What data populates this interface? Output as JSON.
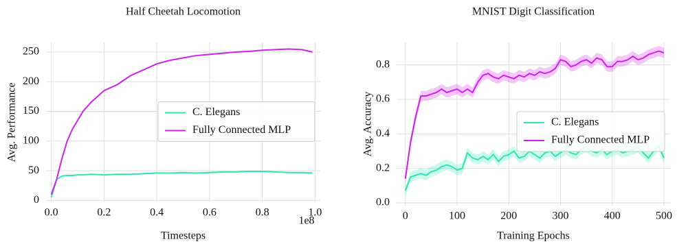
{
  "chart_data": [
    {
      "type": "line",
      "title": "Half Cheetah Locomotion",
      "x_label": "Timesteps",
      "y_label": "Avg. Performance",
      "x_offset_label": "1e8",
      "x": [
        0,
        0.02,
        0.04,
        0.06,
        0.08,
        0.1,
        0.12,
        0.15,
        0.2,
        0.25,
        0.3,
        0.35,
        0.4,
        0.45,
        0.5,
        0.55,
        0.6,
        0.65,
        0.7,
        0.75,
        0.8,
        0.85,
        0.9,
        0.95,
        0.99
      ],
      "series": [
        {
          "name": "C. Elegans",
          "color": "#2ee6b4",
          "values": [
            5,
            35,
            41,
            42,
            42,
            43,
            43,
            44,
            43,
            44,
            44,
            45,
            46,
            46,
            47,
            46,
            47,
            48,
            48,
            49,
            49,
            48,
            47,
            47,
            46
          ]
        },
        {
          "name": "Fully Connected MLP",
          "color": "#d020ec",
          "values": [
            10,
            35,
            70,
            100,
            120,
            135,
            150,
            165,
            185,
            195,
            210,
            220,
            230,
            236,
            240,
            244,
            246,
            248,
            250,
            251,
            253,
            254,
            255,
            254,
            250
          ]
        }
      ],
      "xlim": [
        -0.02,
        1.02
      ],
      "ylim": [
        -3,
        266
      ],
      "xticks": [
        {
          "value": 0,
          "label": "0.0"
        },
        0.2,
        0.4,
        0.6,
        0.8,
        {
          "value": 1,
          "label": "1.0"
        }
      ],
      "yticks": [
        0,
        50,
        100,
        150,
        200,
        250
      ],
      "grid": true,
      "legend": "center right"
    },
    {
      "type": "line",
      "title": "MNIST Digit Classification",
      "x_label": "Training Epochs",
      "y_label": "Avg. Accuracy",
      "x": [
        0,
        10,
        20,
        30,
        40,
        50,
        60,
        70,
        80,
        90,
        100,
        110,
        120,
        130,
        140,
        150,
        160,
        170,
        180,
        190,
        200,
        210,
        220,
        230,
        240,
        250,
        260,
        270,
        280,
        290,
        300,
        310,
        320,
        330,
        340,
        350,
        360,
        370,
        380,
        390,
        400,
        410,
        420,
        430,
        440,
        450,
        460,
        470,
        480,
        490,
        500
      ],
      "series": [
        {
          "name": "C. Elegans",
          "color": "#2ee6b4",
          "error": 0.03,
          "values": [
            0.07,
            0.15,
            0.16,
            0.17,
            0.16,
            0.18,
            0.19,
            0.21,
            0.22,
            0.21,
            0.19,
            0.2,
            0.29,
            0.26,
            0.25,
            0.27,
            0.25,
            0.28,
            0.24,
            0.27,
            0.28,
            0.3,
            0.26,
            0.27,
            0.3,
            0.28,
            0.26,
            0.29,
            0.3,
            0.27,
            0.29,
            0.31,
            0.29,
            0.28,
            0.31,
            0.32,
            0.3,
            0.29,
            0.31,
            0.28,
            0.3,
            0.31,
            0.29,
            0.3,
            0.31,
            0.32,
            0.29,
            0.26,
            0.3,
            0.33,
            0.26
          ]
        },
        {
          "name": "Fully Connected MLP",
          "color": "#d020ec",
          "error": 0.03,
          "values": [
            0.14,
            0.35,
            0.5,
            0.62,
            0.62,
            0.63,
            0.64,
            0.66,
            0.64,
            0.65,
            0.66,
            0.64,
            0.66,
            0.64,
            0.7,
            0.74,
            0.75,
            0.73,
            0.72,
            0.74,
            0.73,
            0.72,
            0.74,
            0.73,
            0.75,
            0.74,
            0.76,
            0.75,
            0.76,
            0.78,
            0.83,
            0.82,
            0.79,
            0.8,
            0.82,
            0.83,
            0.81,
            0.84,
            0.83,
            0.79,
            0.79,
            0.82,
            0.82,
            0.83,
            0.85,
            0.83,
            0.84,
            0.86,
            0.87,
            0.88,
            0.87
          ]
        }
      ],
      "xlim": [
        -17,
        512
      ],
      "ylim": [
        -0.016,
        0.93
      ],
      "xticks": [
        0,
        100,
        200,
        300,
        400,
        500
      ],
      "yticks": [
        {
          "value": 0,
          "label": "0.0"
        },
        0.2,
        0.4,
        0.6,
        0.8
      ],
      "grid": true,
      "legend": "center right"
    }
  ]
}
